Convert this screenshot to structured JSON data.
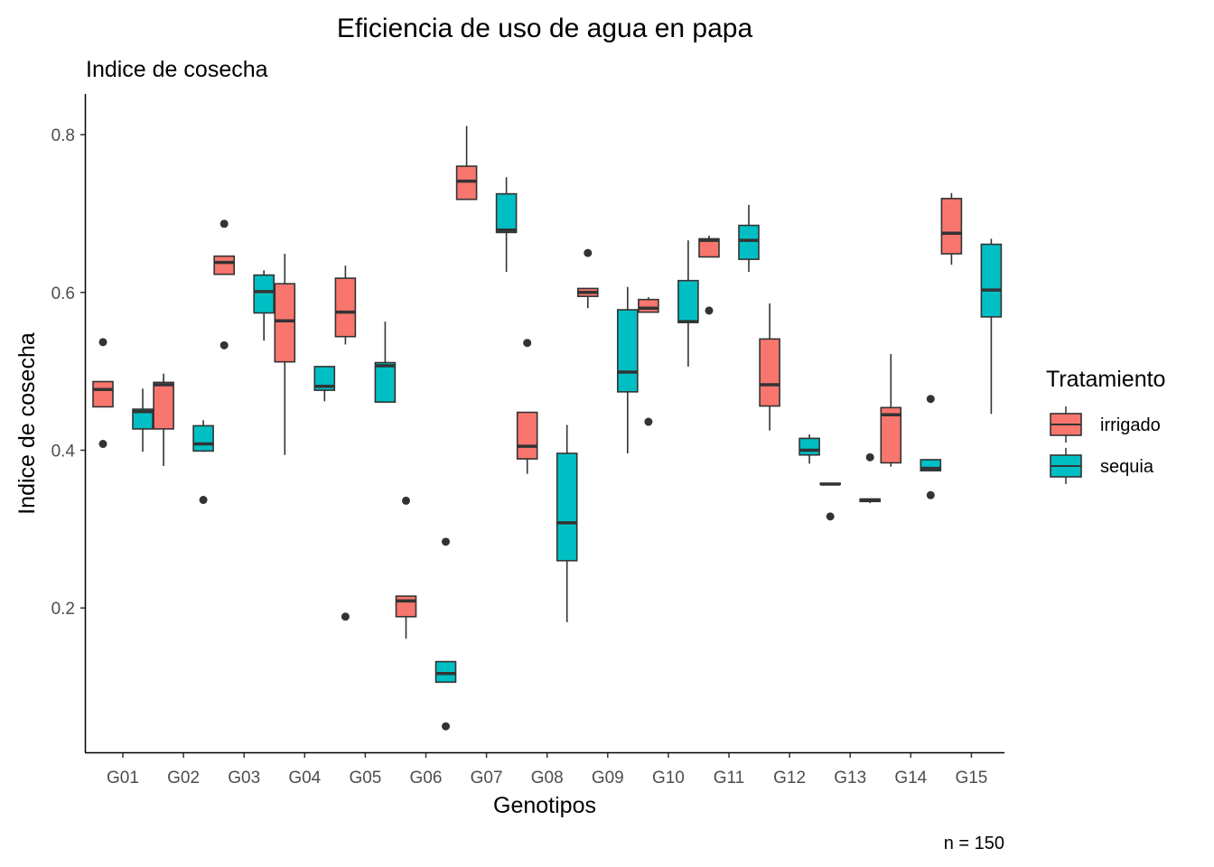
{
  "chart_data": {
    "type": "box",
    "title": "Eficiencia de uso de agua en papa",
    "subtitle": "Indice de cosecha",
    "xlabel": "Genotipos",
    "ylabel": "Indice de cosecha",
    "caption": "n = 150",
    "ylim": [
      0.02,
      0.85
    ],
    "yticks": [
      0.2,
      0.4,
      0.6,
      0.8
    ],
    "grid": false,
    "legend": {
      "title": "Tratamiento",
      "position": "right",
      "entries": [
        {
          "name": "irrigado",
          "color": "#F8766D"
        },
        {
          "name": "sequia",
          "color": "#00BFC4"
        }
      ]
    },
    "categories": [
      "G01",
      "G02",
      "G03",
      "G04",
      "G05",
      "G06",
      "G07",
      "G08",
      "G09",
      "G10",
      "G11",
      "G12",
      "G13",
      "G14",
      "G15"
    ],
    "series": [
      {
        "name": "irrigado",
        "color": "#F8766D",
        "boxes": [
          {
            "wlo": 0.455,
            "q1": 0.455,
            "med": 0.477,
            "q3": 0.487,
            "whi": 0.487,
            "outliers": [
              0.537,
              0.408
            ]
          },
          {
            "wlo": 0.38,
            "q1": 0.427,
            "med": 0.483,
            "q3": 0.486,
            "whi": 0.497,
            "outliers": []
          },
          {
            "wlo": 0.623,
            "q1": 0.623,
            "med": 0.638,
            "q3": 0.646,
            "whi": 0.646,
            "outliers": [
              0.687,
              0.533
            ]
          },
          {
            "wlo": 0.394,
            "q1": 0.512,
            "med": 0.564,
            "q3": 0.611,
            "whi": 0.649,
            "outliers": []
          },
          {
            "wlo": 0.534,
            "q1": 0.544,
            "med": 0.575,
            "q3": 0.618,
            "whi": 0.634,
            "outliers": [
              0.189
            ]
          },
          {
            "wlo": 0.161,
            "q1": 0.189,
            "med": 0.209,
            "q3": 0.215,
            "whi": 0.215,
            "outliers": [
              0.336
            ]
          },
          {
            "wlo": 0.718,
            "q1": 0.718,
            "med": 0.741,
            "q3": 0.76,
            "whi": 0.811,
            "outliers": []
          },
          {
            "wlo": 0.37,
            "q1": 0.389,
            "med": 0.405,
            "q3": 0.448,
            "whi": 0.448,
            "outliers": [
              0.536
            ]
          },
          {
            "wlo": 0.58,
            "q1": 0.595,
            "med": 0.6,
            "q3": 0.605,
            "whi": 0.605,
            "outliers": [
              0.65
            ]
          },
          {
            "wlo": 0.575,
            "q1": 0.575,
            "med": 0.58,
            "q3": 0.591,
            "whi": 0.594,
            "outliers": [
              0.436
            ]
          },
          {
            "wlo": 0.645,
            "q1": 0.645,
            "med": 0.666,
            "q3": 0.668,
            "whi": 0.672,
            "outliers": [
              0.577
            ]
          },
          {
            "wlo": 0.425,
            "q1": 0.456,
            "med": 0.483,
            "q3": 0.541,
            "whi": 0.586,
            "outliers": []
          },
          {
            "wlo": 0.357,
            "q1": 0.357,
            "med": 0.357,
            "q3": 0.358,
            "whi": 0.358,
            "outliers": [
              0.316
            ]
          },
          {
            "wlo": 0.379,
            "q1": 0.384,
            "med": 0.445,
            "q3": 0.454,
            "whi": 0.522,
            "outliers": []
          },
          {
            "wlo": 0.635,
            "q1": 0.649,
            "med": 0.675,
            "q3": 0.719,
            "whi": 0.726,
            "outliers": []
          }
        ]
      },
      {
        "name": "sequia",
        "color": "#00BFC4",
        "boxes": [
          {
            "wlo": 0.398,
            "q1": 0.427,
            "med": 0.449,
            "q3": 0.452,
            "whi": 0.478,
            "outliers": []
          },
          {
            "wlo": 0.398,
            "q1": 0.399,
            "med": 0.408,
            "q3": 0.431,
            "whi": 0.438,
            "outliers": [
              0.337
            ]
          },
          {
            "wlo": 0.539,
            "q1": 0.574,
            "med": 0.601,
            "q3": 0.622,
            "whi": 0.628,
            "outliers": []
          },
          {
            "wlo": 0.462,
            "q1": 0.476,
            "med": 0.481,
            "q3": 0.506,
            "whi": 0.506,
            "outliers": []
          },
          {
            "wlo": 0.461,
            "q1": 0.461,
            "med": 0.507,
            "q3": 0.511,
            "whi": 0.563,
            "outliers": []
          },
          {
            "wlo": 0.106,
            "q1": 0.106,
            "med": 0.117,
            "q3": 0.132,
            "whi": 0.132,
            "outliers": [
              0.284,
              0.05
            ]
          },
          {
            "wlo": 0.626,
            "q1": 0.676,
            "med": 0.679,
            "q3": 0.725,
            "whi": 0.746,
            "outliers": []
          },
          {
            "wlo": 0.182,
            "q1": 0.26,
            "med": 0.308,
            "q3": 0.396,
            "whi": 0.432,
            "outliers": []
          },
          {
            "wlo": 0.396,
            "q1": 0.474,
            "med": 0.499,
            "q3": 0.578,
            "whi": 0.607,
            "outliers": []
          },
          {
            "wlo": 0.506,
            "q1": 0.562,
            "med": 0.563,
            "q3": 0.615,
            "whi": 0.666,
            "outliers": []
          },
          {
            "wlo": 0.626,
            "q1": 0.642,
            "med": 0.666,
            "q3": 0.685,
            "whi": 0.711,
            "outliers": []
          },
          {
            "wlo": 0.383,
            "q1": 0.394,
            "med": 0.4,
            "q3": 0.415,
            "whi": 0.42,
            "outliers": []
          },
          {
            "wlo": 0.333,
            "q1": 0.335,
            "med": 0.337,
            "q3": 0.338,
            "whi": 0.338,
            "outliers": [
              0.391
            ]
          },
          {
            "wlo": 0.374,
            "q1": 0.374,
            "med": 0.377,
            "q3": 0.388,
            "whi": 0.388,
            "outliers": [
              0.465,
              0.343
            ]
          },
          {
            "wlo": 0.446,
            "q1": 0.569,
            "med": 0.603,
            "q3": 0.661,
            "whi": 0.668,
            "outliers": []
          }
        ]
      }
    ]
  }
}
